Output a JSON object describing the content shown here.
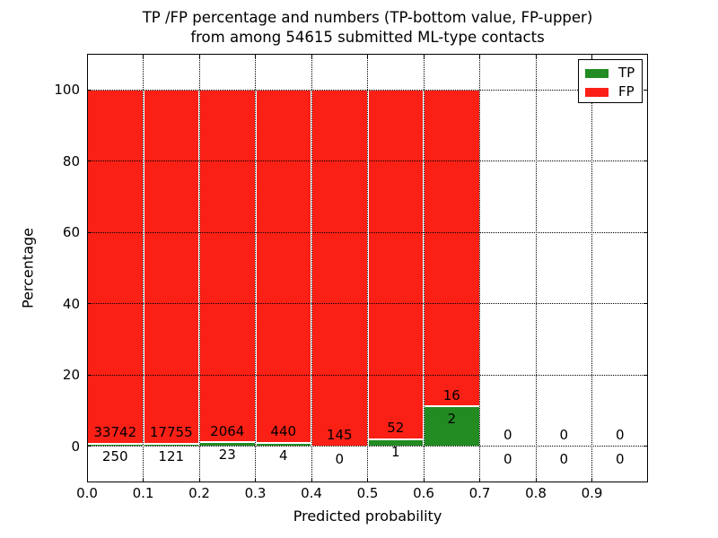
{
  "chart_data": {
    "type": "bar",
    "stacked": true,
    "title_line1": "TP /FP percentage and numbers (TP-bottom value, FP-upper)",
    "title_line2": "from among 54615 submitted ML-type contacts",
    "xlabel": "Predicted probability",
    "ylabel": "Percentage",
    "categories": [
      "0.0-0.1",
      "0.1-0.2",
      "0.2-0.3",
      "0.3-0.4",
      "0.4-0.5",
      "0.5-0.6",
      "0.6-0.7",
      "0.7-0.8",
      "0.8-0.9",
      "0.9-1.0"
    ],
    "bin_edges": [
      0.0,
      0.1,
      0.2,
      0.3,
      0.4,
      0.5,
      0.6,
      0.7,
      0.8,
      0.9,
      1.0
    ],
    "series": [
      {
        "name": "TP",
        "color": "#228b22",
        "counts": [
          250,
          121,
          23,
          4,
          0,
          1,
          2,
          0,
          0,
          0
        ],
        "pct": [
          0.735,
          0.677,
          1.102,
          0.901,
          0.0,
          1.887,
          11.111,
          0,
          0,
          0
        ]
      },
      {
        "name": "FP",
        "color": "#fb2015",
        "counts": [
          33742,
          17755,
          2064,
          440,
          145,
          52,
          16,
          0,
          0,
          0
        ],
        "pct": [
          99.265,
          99.323,
          98.898,
          99.099,
          100.0,
          98.113,
          88.889,
          0,
          0,
          0
        ]
      }
    ],
    "xticks": [
      "0.0",
      "0.1",
      "0.2",
      "0.3",
      "0.4",
      "0.5",
      "0.6",
      "0.7",
      "0.8",
      "0.9"
    ],
    "yticks": [
      0,
      20,
      40,
      60,
      80,
      100
    ],
    "ylim": [
      -10.2,
      110.2
    ],
    "xlim": [
      0.0,
      1.0
    ],
    "grid": "dotted",
    "bar_edge_color": "#ffffff",
    "legend": {
      "position": "upper right",
      "entries": [
        "TP",
        "FP"
      ]
    }
  }
}
